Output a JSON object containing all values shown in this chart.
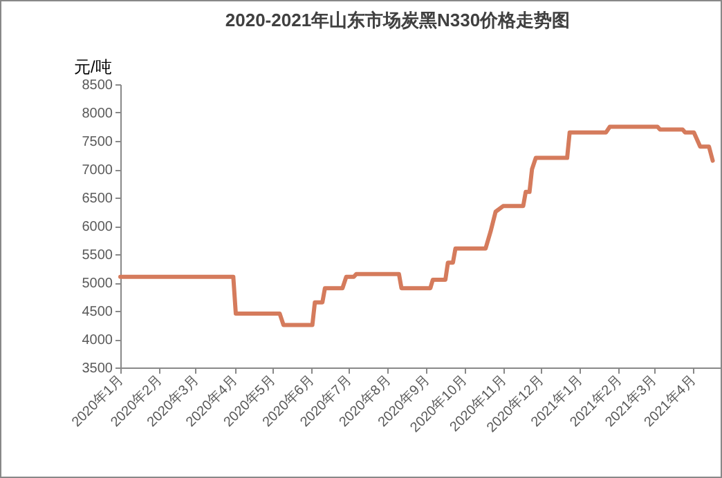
{
  "chart_data": {
    "type": "line",
    "title": "2020-2021年山东市场炭黑N330价格走势图",
    "ylabel": "元/吨",
    "x": [
      "2020-01-01",
      "2020-03-31",
      "2020-04-02",
      "2020-05-07",
      "2020-05-10",
      "2020-06-02",
      "2020-06-04",
      "2020-06-10",
      "2020-06-12",
      "2020-06-26",
      "2020-06-29",
      "2020-07-05",
      "2020-07-07",
      "2020-08-10",
      "2020-08-12",
      "2020-09-04",
      "2020-09-06",
      "2020-09-16",
      "2020-09-18",
      "2020-09-22",
      "2020-09-24",
      "2020-10-18",
      "2020-10-22",
      "2020-10-26",
      "2020-11-01",
      "2020-11-17",
      "2020-11-19",
      "2020-11-22",
      "2020-11-24",
      "2020-11-27",
      "2020-12-22",
      "2020-12-24",
      "2021-01-22",
      "2021-01-25",
      "2021-03-04",
      "2021-03-06",
      "2021-03-24",
      "2021-03-26",
      "2021-04-02",
      "2021-04-07",
      "2021-04-14",
      "2021-04-17"
    ],
    "series": [
      {
        "color": "#d57b5c",
        "values": [
          5100,
          5100,
          4450,
          4450,
          4250,
          4250,
          4650,
          4650,
          4900,
          4900,
          5100,
          5100,
          5150,
          5150,
          4900,
          4900,
          5050,
          5050,
          5350,
          5350,
          5600,
          5600,
          5900,
          6250,
          6350,
          6350,
          6600,
          6600,
          7000,
          7200,
          7200,
          7650,
          7650,
          7750,
          7750,
          7700,
          7700,
          7650,
          7650,
          7400,
          7400,
          7150
        ]
      }
    ],
    "xlim": [
      "2020-01-01",
      "2021-05-01"
    ],
    "xticks": [
      {
        "value": "2020-01-01",
        "label": "2020年1月"
      },
      {
        "value": "2020-02-01",
        "label": "2020年2月"
      },
      {
        "value": "2020-03-01",
        "label": "2020年3月"
      },
      {
        "value": "2020-04-01",
        "label": "2020年4月"
      },
      {
        "value": "2020-05-01",
        "label": "2020年5月"
      },
      {
        "value": "2020-06-01",
        "label": "2020年6月"
      },
      {
        "value": "2020-07-01",
        "label": "2020年7月"
      },
      {
        "value": "2020-08-01",
        "label": "2020年8月"
      },
      {
        "value": "2020-09-01",
        "label": "2020年9月"
      },
      {
        "value": "2020-10-01",
        "label": "2020年10月"
      },
      {
        "value": "2020-11-01",
        "label": "2020年11月"
      },
      {
        "value": "2020-12-01",
        "label": "2020年12月"
      },
      {
        "value": "2021-01-01",
        "label": "2021年1月"
      },
      {
        "value": "2021-02-01",
        "label": "2021年2月"
      },
      {
        "value": "2021-03-01",
        "label": "2021年3月"
      },
      {
        "value": "2021-04-01",
        "label": "2021年4月"
      },
      {
        "value": "2021-05-01",
        "label": null
      }
    ],
    "ylim": [
      3500,
      8500
    ],
    "yticks": [
      3500,
      4000,
      4500,
      5000,
      5500,
      6000,
      6500,
      7000,
      7500,
      8000,
      8500
    ],
    "grid": false,
    "marker": "none",
    "line_style": "solid"
  }
}
